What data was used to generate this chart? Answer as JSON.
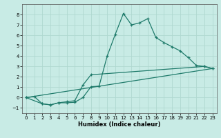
{
  "xlabel": "Humidex (Indice chaleur)",
  "xlim": [
    -0.5,
    23.5
  ],
  "ylim": [
    -1.5,
    9.0
  ],
  "yticks": [
    -1,
    0,
    1,
    2,
    3,
    4,
    5,
    6,
    7,
    8
  ],
  "xticks": [
    0,
    1,
    2,
    3,
    4,
    5,
    6,
    7,
    8,
    9,
    10,
    11,
    12,
    13,
    14,
    15,
    16,
    17,
    18,
    19,
    20,
    21,
    22,
    23
  ],
  "background_color": "#c8ebe5",
  "grid_color": "#b0d8d0",
  "line_color": "#1e7a6a",
  "line1_x": [
    0,
    1,
    2,
    3,
    4,
    5,
    6,
    7,
    8,
    9,
    10,
    11,
    12,
    13,
    14,
    15,
    16,
    17,
    18,
    19,
    20,
    21,
    22,
    23
  ],
  "line1_y": [
    0.0,
    0.1,
    -0.6,
    -0.7,
    -0.5,
    -0.5,
    -0.45,
    0.0,
    1.05,
    1.1,
    4.0,
    6.1,
    8.1,
    7.0,
    7.2,
    7.6,
    5.8,
    5.3,
    4.9,
    4.5,
    3.85,
    3.1,
    3.0,
    2.8
  ],
  "line2_x": [
    0,
    2,
    3,
    4,
    5,
    6,
    7,
    8,
    22,
    23
  ],
  "line2_y": [
    0.0,
    -0.6,
    -0.7,
    -0.5,
    -0.4,
    -0.3,
    1.2,
    2.2,
    3.0,
    2.8
  ],
  "line3_x": [
    0,
    23
  ],
  "line3_y": [
    0.0,
    2.8
  ]
}
